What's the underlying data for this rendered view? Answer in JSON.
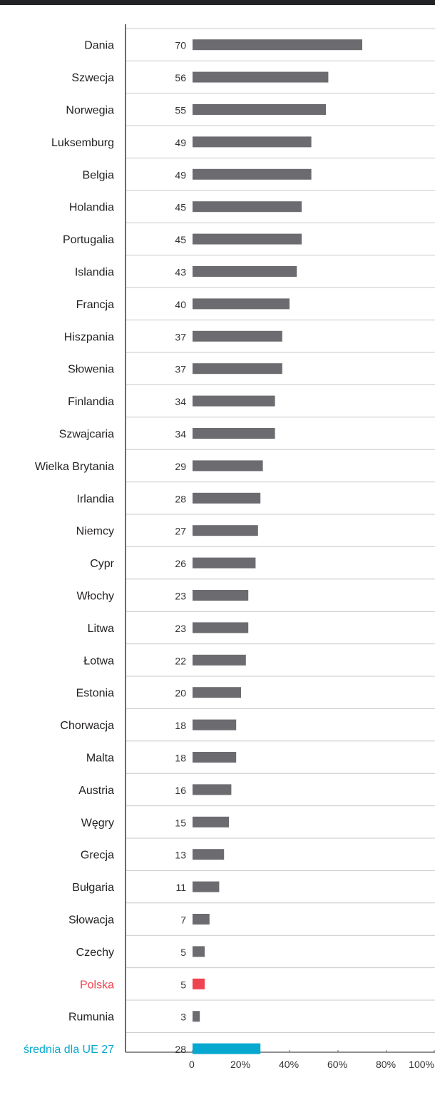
{
  "chart_data": {
    "type": "bar",
    "orientation": "horizontal",
    "title": "",
    "xlabel": "",
    "ylabel": "",
    "xlim": [
      0,
      100
    ],
    "x_ticks": [
      "0",
      "20%",
      "40%",
      "60%",
      "80%",
      "100%"
    ],
    "grid": "horizontal separators between rows",
    "legend": "none",
    "categories": [
      "Dania",
      "Szwecja",
      "Norwegia",
      "Luksemburg",
      "Belgia",
      "Holandia",
      "Portugalia",
      "Islandia",
      "Francja",
      "Hiszpania",
      "Słowenia",
      "Finlandia",
      "Szwajcaria",
      "Wielka Brytania",
      "Irlandia",
      "Niemcy",
      "Cypr",
      "Włochy",
      "Litwa",
      "Łotwa",
      "Estonia",
      "Chorwacja",
      "Malta",
      "Austria",
      "Węgry",
      "Grecja",
      "Bułgaria",
      "Słowacja",
      "Czechy",
      "Polska",
      "Rumunia",
      "średnia dla UE 27"
    ],
    "values": [
      70,
      56,
      55,
      49,
      49,
      45,
      45,
      43,
      40,
      37,
      37,
      34,
      34,
      29,
      28,
      27,
      26,
      23,
      23,
      22,
      20,
      18,
      18,
      16,
      15,
      13,
      11,
      7,
      5,
      5,
      3,
      28
    ],
    "highlights": {
      "Polska": "#ef4450",
      "średnia dla UE 27": "#07a8cf"
    },
    "colors": {
      "bar": "#6c6c70",
      "axis": "#6c6c70",
      "separator": "#c8c8c8",
      "label": "#231f20",
      "top_bar": "#222326"
    }
  }
}
